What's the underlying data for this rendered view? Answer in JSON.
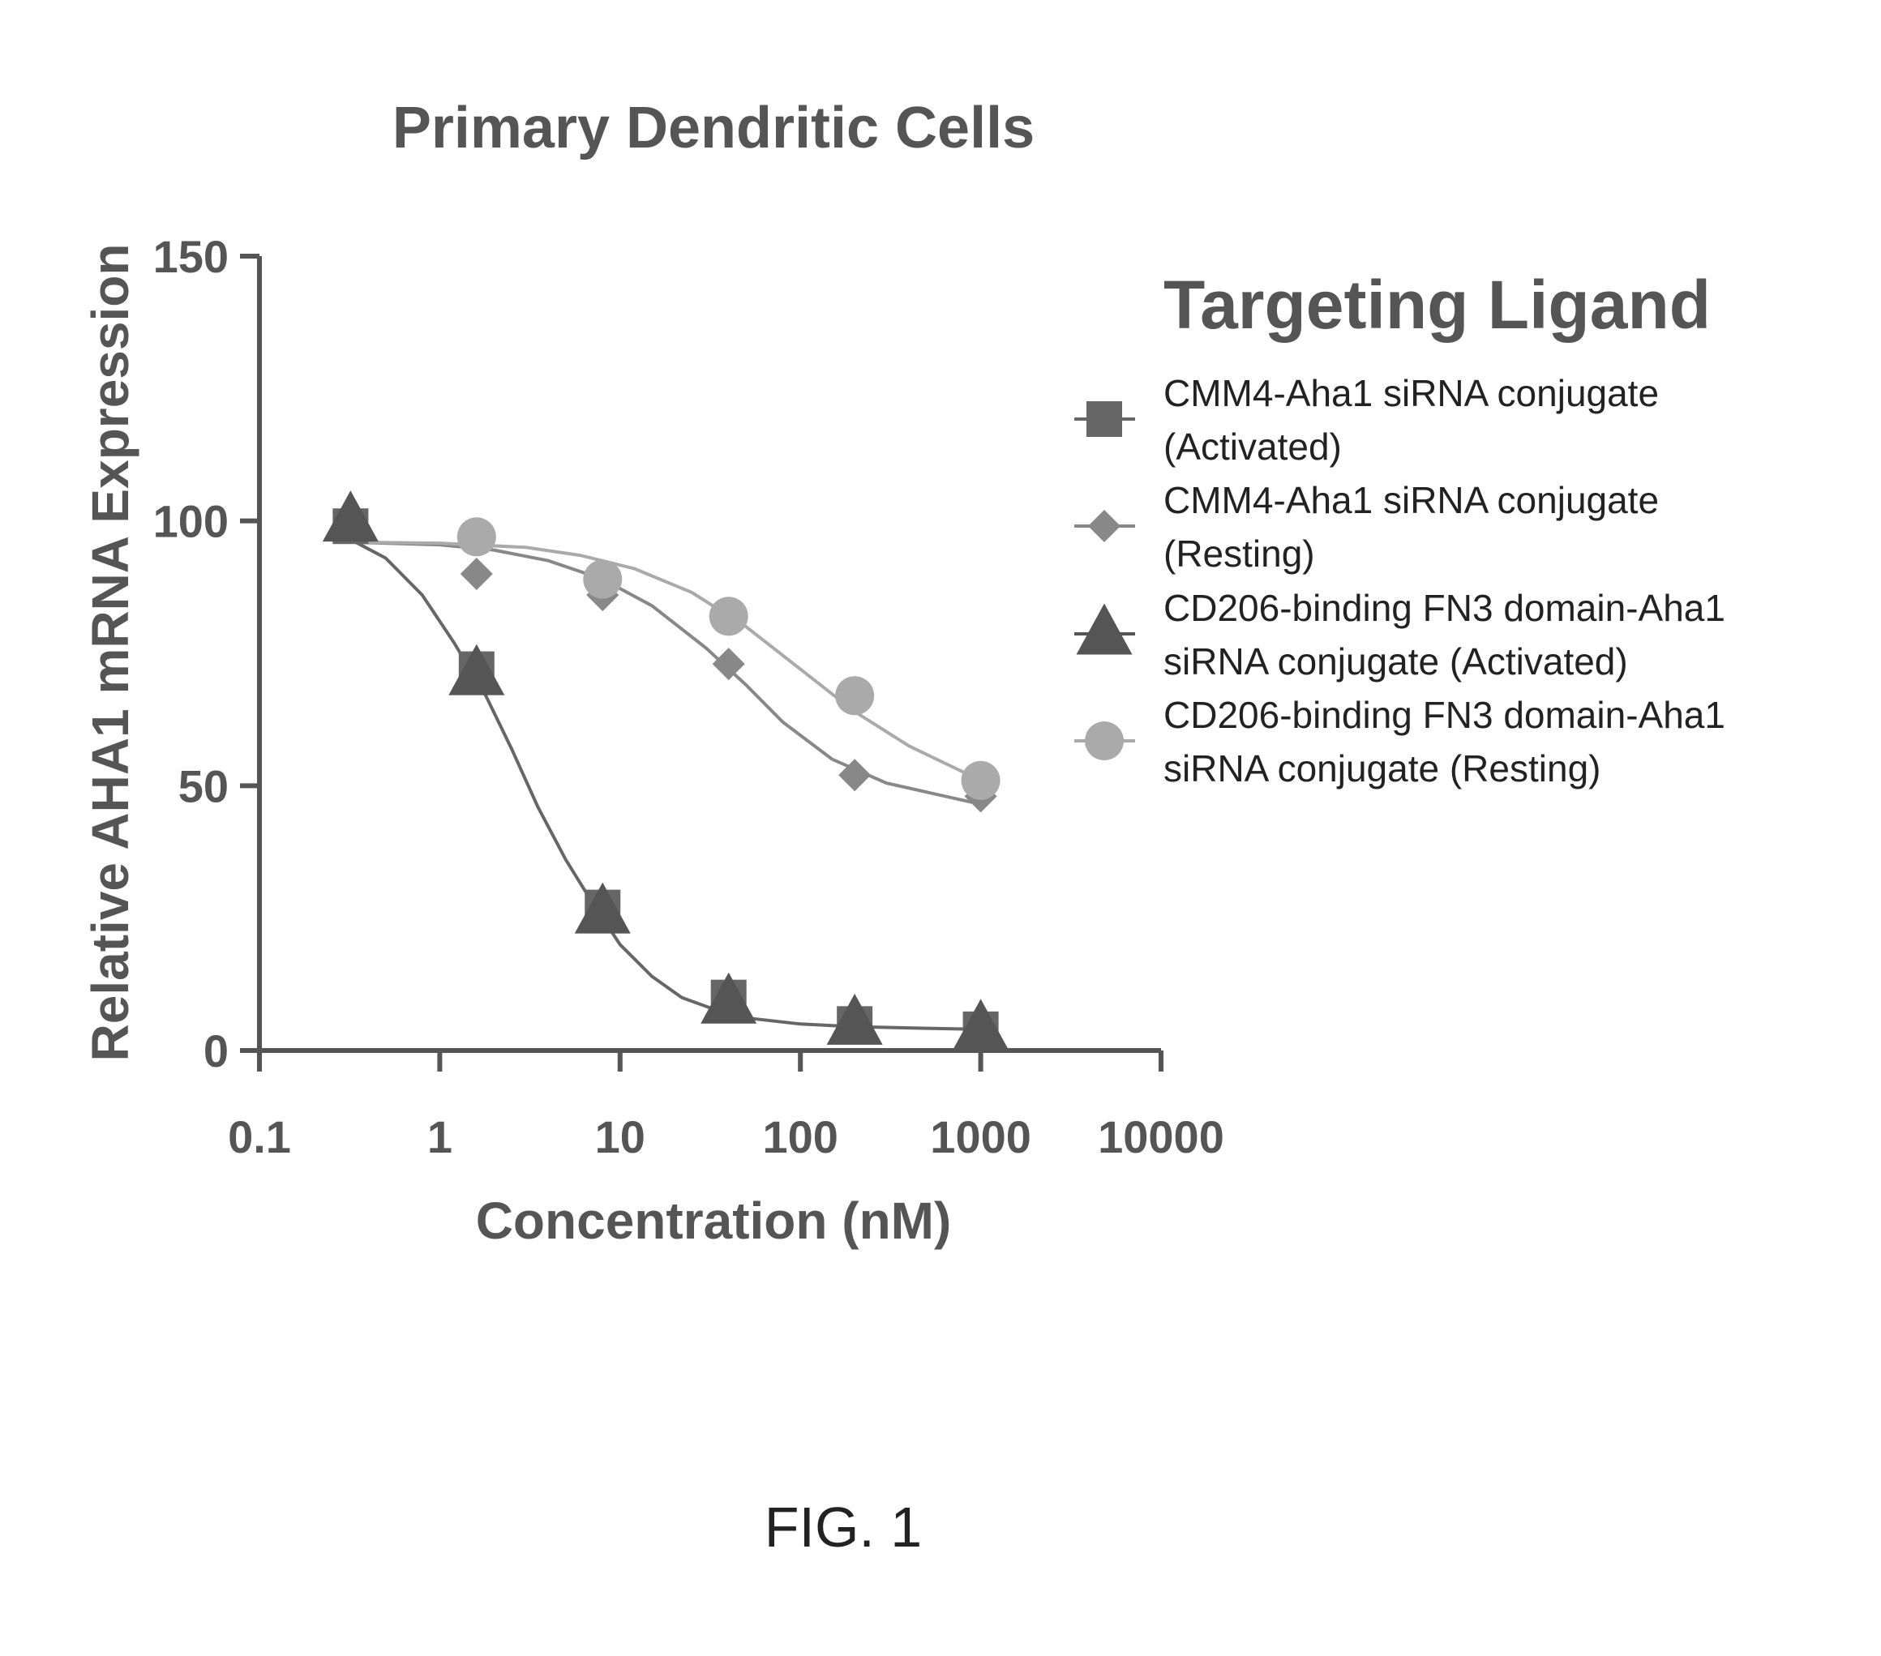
{
  "chart_data": {
    "type": "scatter",
    "title": "Primary Dendritic Cells",
    "xlabel": "Concentration (nM)",
    "ylabel": "Relative AHA1 mRNA Expression",
    "xscale": "log",
    "xlim": [
      0.1,
      10000
    ],
    "ylim": [
      0,
      150
    ],
    "xticks": [
      0.1,
      1,
      10,
      100,
      1000,
      10000
    ],
    "xtick_labels": [
      "0.1",
      "1",
      "10",
      "100",
      "1000",
      "10000"
    ],
    "yticks": [
      0,
      50,
      100,
      150
    ],
    "ytick_labels": [
      "0",
      "50",
      "100",
      "150"
    ],
    "grid": false,
    "legend_title": "Targeting Ligand",
    "legend_position": "right",
    "series": [
      {
        "name": "CMM4-Aha1 siRNA conjugate (Activated)",
        "legend_lines": [
          "CMM4-Aha1 siRNA conjugate",
          "(Activated)"
        ],
        "marker": "square",
        "color": "#666666",
        "x": [
          0.32,
          1.6,
          8,
          40,
          200,
          1000
        ],
        "y": [
          99,
          72,
          27,
          10,
          5,
          4
        ],
        "fit": [
          [
            0.3,
            97
          ],
          [
            0.5,
            93
          ],
          [
            0.8,
            86
          ],
          [
            1.2,
            77
          ],
          [
            1.8,
            67
          ],
          [
            2.5,
            57
          ],
          [
            3.5,
            46
          ],
          [
            5,
            36
          ],
          [
            7,
            28
          ],
          [
            10,
            20
          ],
          [
            15,
            14
          ],
          [
            22,
            10
          ],
          [
            35,
            7.5
          ],
          [
            55,
            6
          ],
          [
            100,
            5
          ],
          [
            200,
            4.5
          ],
          [
            500,
            4.2
          ],
          [
            1000,
            4
          ]
        ]
      },
      {
        "name": "CMM4-Aha1 siRNA conjugate (Resting)",
        "legend_lines": [
          "CMM4-Aha1 siRNA conjugate",
          "(Resting)"
        ],
        "marker": "diamond",
        "color": "#888888",
        "x": [
          1.6,
          8,
          40,
          200,
          1000
        ],
        "y": [
          90,
          86,
          73,
          52,
          48
        ],
        "fit": [
          [
            0.3,
            96
          ],
          [
            1,
            95.5
          ],
          [
            2,
            94.5
          ],
          [
            4,
            92.5
          ],
          [
            8,
            89
          ],
          [
            15,
            84
          ],
          [
            30,
            76
          ],
          [
            50,
            69
          ],
          [
            80,
            62
          ],
          [
            150,
            55
          ],
          [
            300,
            50.5
          ],
          [
            1000,
            46.5
          ]
        ]
      },
      {
        "name": "CD206-binding FN3 domain-Aha1 siRNA conjugate (Activated)",
        "legend_lines": [
          "CD206-binding FN3 domain-Aha1",
          "siRNA conjugate (Activated)"
        ],
        "marker": "triangle",
        "color": "#555555",
        "x": [
          0.32,
          1.6,
          8,
          40,
          200,
          1000
        ],
        "y": [
          100,
          71,
          26,
          9,
          5,
          4
        ],
        "fit": []
      },
      {
        "name": "CD206-binding FN3 domain-Aha1 siRNA conjugate (Resting)",
        "legend_lines": [
          "CD206-binding FN3 domain-Aha1",
          "siRNA conjugate (Resting)"
        ],
        "marker": "circle",
        "color": "#aaaaaa",
        "x": [
          1.6,
          8,
          40,
          200,
          1000
        ],
        "y": [
          97,
          89,
          82,
          67,
          51
        ],
        "fit": [
          [
            0.3,
            96
          ],
          [
            1,
            95.8
          ],
          [
            3,
            95
          ],
          [
            6,
            93.5
          ],
          [
            12,
            91
          ],
          [
            25,
            86.5
          ],
          [
            50,
            80
          ],
          [
            100,
            72
          ],
          [
            200,
            64
          ],
          [
            400,
            57.5
          ],
          [
            1000,
            51
          ]
        ]
      }
    ]
  },
  "caption": "FIG. 1"
}
